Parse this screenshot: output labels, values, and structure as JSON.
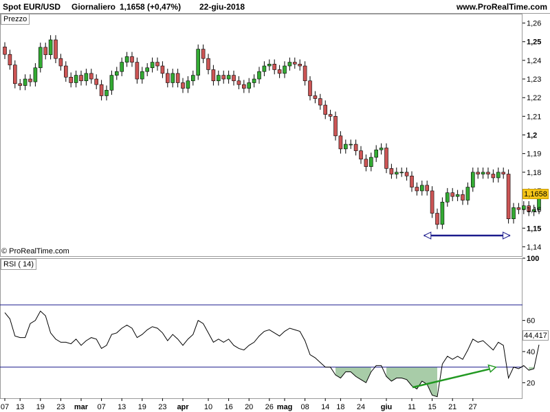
{
  "header": {
    "symbol": "Spot EUR/USD",
    "period": "Giornaliero",
    "quote": "1,1658 (+0,47%)",
    "date": "22-giu-2018",
    "site": "www.ProRealTime.com"
  },
  "price_panel_label": "Prezzo",
  "rsi_panel_label": "RSI ( 14)",
  "copyright": "© ProRealTime.com",
  "last_price_label": "1,1658",
  "last_rsi_label": "44,417",
  "colors": {
    "up": "#33aa33",
    "down": "#cc5555",
    "rsi_line": "#000000",
    "level_line": "#1a1a8c",
    "fill": "#a8cca8",
    "arrow_nav": "#1a1a8c",
    "arrow_green": "#229922",
    "tag": "#f5c518"
  },
  "chart_data": [
    {
      "type": "candlestick",
      "title": "Spot EUR/USD Giornaliero",
      "ylim": [
        1.135,
        1.265
      ],
      "yticks": [
        {
          "value": 1.26,
          "label": "1,26",
          "bold": false
        },
        {
          "value": 1.25,
          "label": "1,25",
          "bold": true
        },
        {
          "value": 1.24,
          "label": "1,24",
          "bold": false
        },
        {
          "value": 1.23,
          "label": "1,23",
          "bold": false
        },
        {
          "value": 1.22,
          "label": "1,22",
          "bold": false
        },
        {
          "value": 1.21,
          "label": "1,21",
          "bold": false
        },
        {
          "value": 1.2,
          "label": "1,2",
          "bold": true
        },
        {
          "value": 1.19,
          "label": "1,19",
          "bold": false
        },
        {
          "value": 1.18,
          "label": "1,18",
          "bold": false
        },
        {
          "value": 1.17,
          "label": "1,17",
          "bold": false
        },
        {
          "value": 1.16,
          "label": "1,16",
          "bold": false
        },
        {
          "value": 1.15,
          "label": "1,15",
          "bold": true
        },
        {
          "value": 1.14,
          "label": "1,14",
          "bold": false
        }
      ],
      "last_price": 1.1658,
      "closes": [
        1.2432,
        1.2375,
        1.2275,
        1.2265,
        1.23,
        1.2285,
        1.236,
        1.247,
        1.243,
        1.251,
        1.241,
        1.237,
        1.231,
        1.228,
        1.232,
        1.229,
        1.233,
        1.23,
        1.227,
        1.221,
        1.224,
        1.232,
        1.234,
        1.239,
        1.242,
        1.239,
        1.23,
        1.234,
        1.236,
        1.239,
        1.237,
        1.233,
        1.228,
        1.233,
        1.228,
        1.225,
        1.229,
        1.232,
        1.246,
        1.241,
        1.235,
        1.229,
        1.232,
        1.23,
        1.232,
        1.229,
        1.227,
        1.225,
        1.228,
        1.23,
        1.234,
        1.237,
        1.238,
        1.235,
        1.233,
        1.237,
        1.239,
        1.238,
        1.237,
        1.229,
        1.221,
        1.2195,
        1.216,
        1.211,
        1.21,
        1.1995,
        1.1925,
        1.195,
        1.195,
        1.1915,
        1.187,
        1.183,
        1.188,
        1.192,
        1.193,
        1.182,
        1.179,
        1.18,
        1.18,
        1.178,
        1.172,
        1.17,
        1.173,
        1.17,
        1.158,
        1.152,
        1.164,
        1.169,
        1.167,
        1.168,
        1.165,
        1.172,
        1.18,
        1.179,
        1.18,
        1.179,
        1.177,
        1.18,
        1.179,
        1.155,
        1.161,
        1.16,
        1.162,
        1.159,
        1.16,
        1.1658
      ],
      "x_ticks": [
        {
          "index": 0,
          "label": "07",
          "month": false
        },
        {
          "index": 3,
          "label": "13",
          "month": false
        },
        {
          "index": 7,
          "label": "19",
          "month": false
        },
        {
          "index": 11,
          "label": "23",
          "month": false
        },
        {
          "index": 15,
          "label": "mar",
          "month": true
        },
        {
          "index": 19,
          "label": "07",
          "month": false
        },
        {
          "index": 23,
          "label": "13",
          "month": false
        },
        {
          "index": 27,
          "label": "19",
          "month": false
        },
        {
          "index": 31,
          "label": "23",
          "month": false
        },
        {
          "index": 35,
          "label": "apr",
          "month": true
        },
        {
          "index": 40,
          "label": "10",
          "month": false
        },
        {
          "index": 44,
          "label": "16",
          "month": false
        },
        {
          "index": 48,
          "label": "20",
          "month": false
        },
        {
          "index": 52,
          "label": "26",
          "month": false
        },
        {
          "index": 55,
          "label": "mag",
          "month": true
        },
        {
          "index": 59,
          "label": "08",
          "month": false
        },
        {
          "index": 63,
          "label": "14",
          "month": false
        },
        {
          "index": 66,
          "label": "18",
          "month": false
        },
        {
          "index": 70,
          "label": "24",
          "month": false
        },
        {
          "index": 75,
          "label": "giu",
          "month": true
        },
        {
          "index": 80,
          "label": "11",
          "month": false
        },
        {
          "index": 84,
          "label": "15",
          "month": false
        },
        {
          "index": 88,
          "label": "21",
          "month": false
        },
        {
          "index": 92,
          "label": "27",
          "month": false
        }
      ]
    },
    {
      "type": "line",
      "title": "RSI ( 14)",
      "ylim": [
        10,
        100
      ],
      "yticks": [
        {
          "value": 100,
          "label": "100",
          "bold": true
        },
        {
          "value": 60,
          "label": "60",
          "bold": false
        },
        {
          "value": 40,
          "label": "40",
          "bold": false
        },
        {
          "value": 20,
          "label": "20",
          "bold": false
        }
      ],
      "levels": [
        70,
        30
      ],
      "last_value": 44.417,
      "values": [
        65,
        61,
        50,
        49,
        49,
        58,
        60,
        66,
        63,
        52,
        48,
        46,
        46,
        45,
        48,
        44,
        47,
        49,
        48,
        42,
        44,
        51,
        52,
        55,
        57,
        55,
        49,
        51,
        54,
        56,
        55,
        52,
        47,
        51,
        48,
        44,
        48,
        51,
        60,
        58,
        52,
        46,
        48,
        46,
        48,
        44,
        42,
        41,
        44,
        46,
        50,
        53,
        54,
        52,
        50,
        53,
        55,
        54,
        53,
        47,
        38,
        36,
        33,
        30,
        30,
        25,
        23,
        27,
        27,
        24,
        22,
        20,
        27,
        31,
        31,
        24,
        21,
        23,
        23,
        22,
        18,
        16,
        21,
        19,
        12,
        11,
        32,
        37,
        35,
        37,
        35,
        41,
        48,
        46,
        47,
        44,
        41,
        46,
        44,
        23,
        30,
        29,
        31,
        28,
        29,
        44.4
      ],
      "arrows": [
        {
          "type": "range",
          "from_index": 82,
          "to_index": 99,
          "description_hidden": true
        },
        {
          "type": "trend",
          "from_value": 17,
          "to_value": 30
        }
      ]
    }
  ]
}
